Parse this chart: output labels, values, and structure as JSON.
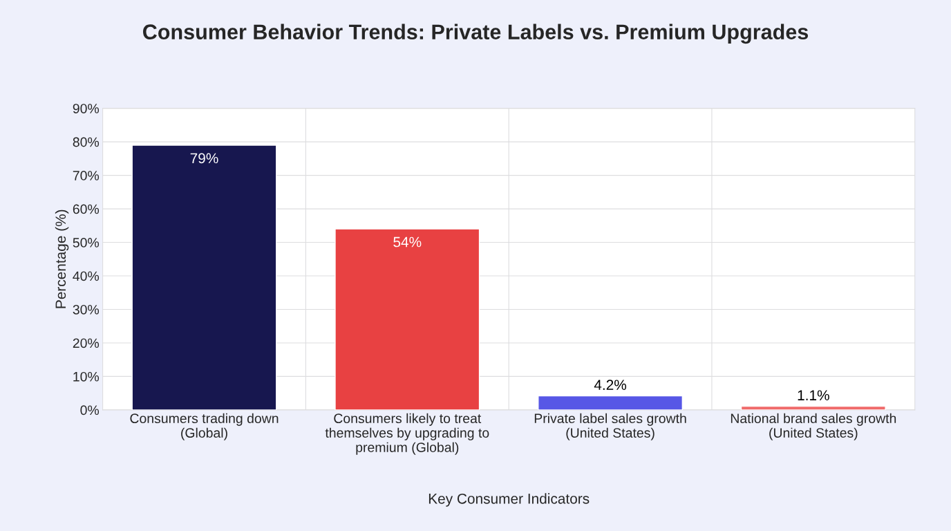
{
  "chart_data": {
    "type": "bar",
    "title": "Consumer Behavior Trends: Private Labels vs. Premium Upgrades",
    "xlabel": "Key Consumer Indicators",
    "ylabel": "Percentage (%)",
    "categories": [
      "Consumers trading down\n(Global)",
      "Consumers likely to treat\nthemselves by upgrading to\npremium (Global)",
      "Private label sales growth\n(United States)",
      "National brand sales growth\n(United States)"
    ],
    "values": [
      79,
      54,
      4.2,
      1.1
    ],
    "colors": [
      "#17174f",
      "#e84142",
      "#5757e6",
      "#f06a6a"
    ],
    "value_labels": [
      "79%",
      "54%",
      "4.2%",
      "1.1%"
    ],
    "ylim": [
      0,
      90
    ],
    "yticks": [
      {
        "value": 0,
        "label": "0%"
      },
      {
        "value": 10,
        "label": "10%"
      },
      {
        "value": 20,
        "label": "20%"
      },
      {
        "value": 30,
        "label": "30%"
      },
      {
        "value": 40,
        "label": "40%"
      },
      {
        "value": 50,
        "label": "50%"
      },
      {
        "value": 60,
        "label": "60%"
      },
      {
        "value": 70,
        "label": "70%"
      },
      {
        "value": 80,
        "label": "80%"
      },
      {
        "value": 90,
        "label": "90%"
      }
    ],
    "grid": true
  }
}
